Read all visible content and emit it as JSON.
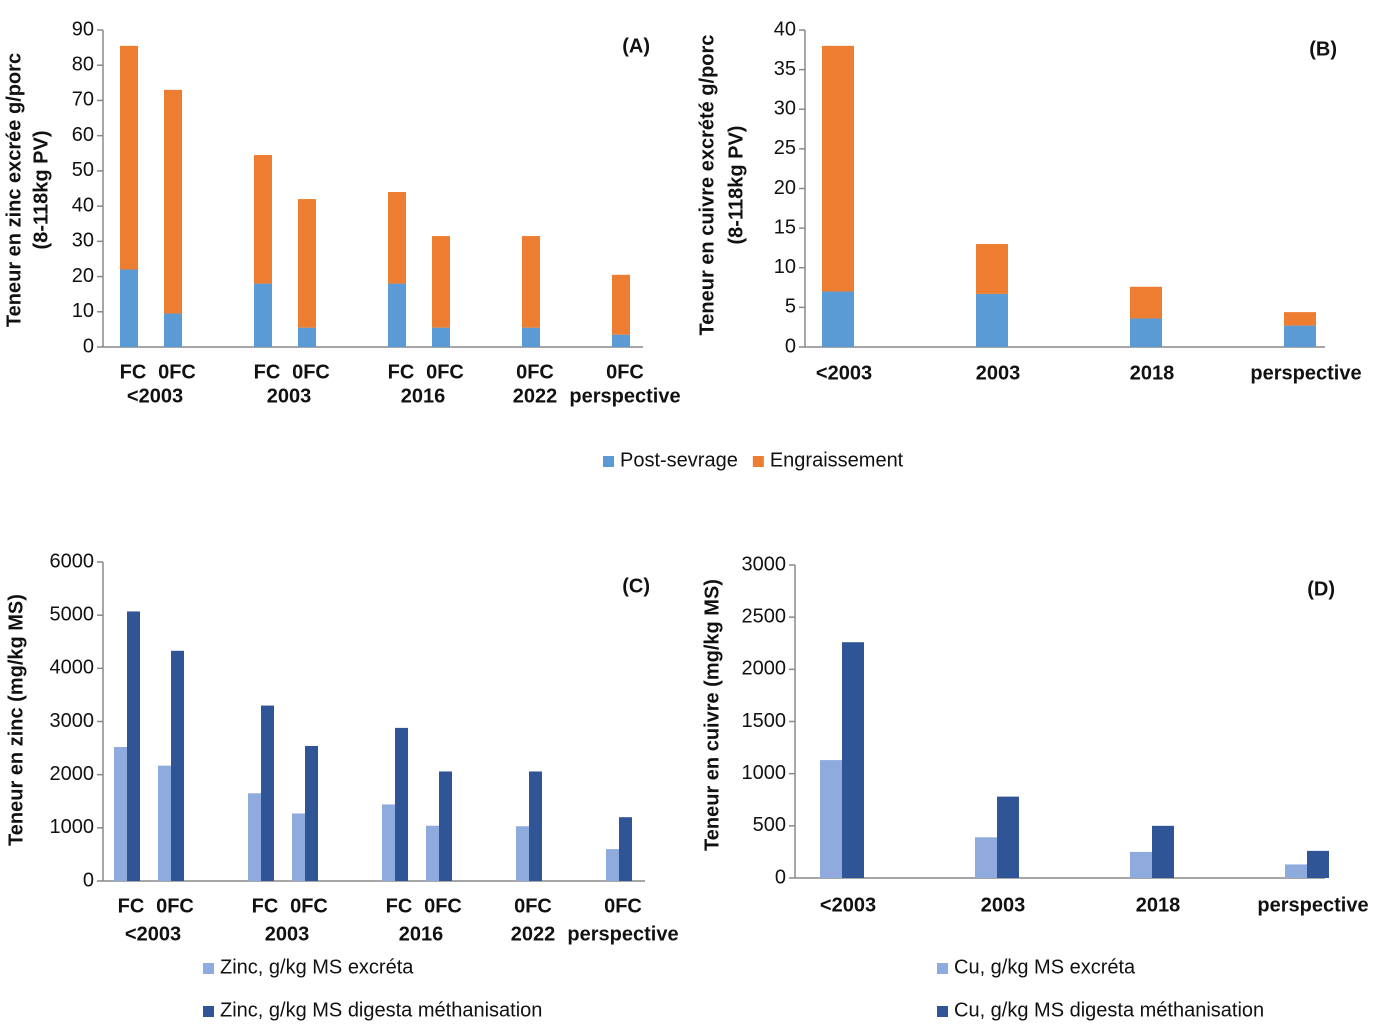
{
  "chart_data": [
    {
      "type": "bar",
      "stacked": true,
      "label": "(A)",
      "ylabel": [
        "Teneur en zinc excrée g/porc",
        "(8-118kg PV)"
      ],
      "groups": [
        {
          "label": "<2003",
          "categories": [
            "FC",
            "0FC"
          ]
        },
        {
          "label": "2003",
          "categories": [
            "FC",
            "0FC"
          ]
        },
        {
          "label": "2016",
          "categories": [
            "FC",
            "0FC"
          ]
        },
        {
          "label": "2022",
          "categories": [
            "0FC"
          ]
        },
        {
          "label": "perspective",
          "categories": [
            "0FC"
          ]
        }
      ],
      "series": [
        {
          "name": "Post-sevrage",
          "color": "#5b9bd5",
          "values": [
            22,
            9.5,
            18,
            5.5,
            18,
            5.5,
            5.5,
            3.5
          ]
        },
        {
          "name": "Engraissement",
          "color": "#ed7d31",
          "values": [
            63.5,
            63.5,
            36.5,
            36.5,
            26,
            26,
            26,
            17
          ]
        }
      ],
      "ylim": [
        0,
        90
      ],
      "yticks": [
        0,
        10,
        20,
        30,
        40,
        50,
        60,
        70,
        80,
        90
      ]
    },
    {
      "type": "bar",
      "stacked": true,
      "label": "(B)",
      "ylabel": [
        "Teneur en cuivre  excrété g/porc",
        "(8-118kg PV)"
      ],
      "categories": [
        "<2003",
        "2003",
        "2018",
        "perspective"
      ],
      "series": [
        {
          "color": "#5b9bd5",
          "values": [
            7,
            6.7,
            3.6,
            2.7
          ]
        },
        {
          "color": "#ed7d31",
          "values": [
            31,
            6.3,
            4,
            1.7
          ]
        }
      ],
      "ylim": [
        0,
        40
      ],
      "yticks": [
        0,
        5,
        10,
        15,
        20,
        25,
        30,
        35,
        40
      ]
    },
    {
      "type": "bar",
      "stacked": false,
      "label": "(C)",
      "ylabel": [
        "Teneur en zinc  (mg/kg MS)"
      ],
      "groups": [
        {
          "label": "<2003",
          "categories": [
            "FC",
            "0FC"
          ]
        },
        {
          "label": "2003",
          "categories": [
            "FC",
            "0FC"
          ]
        },
        {
          "label": "2016",
          "categories": [
            "FC",
            "0FC"
          ]
        },
        {
          "label": "2022",
          "categories": [
            "0FC"
          ]
        },
        {
          "label": "perspective",
          "categories": [
            "0FC"
          ]
        }
      ],
      "series": [
        {
          "name": "Zinc, g/kg MS excréta",
          "color": "#8faadc",
          "values": [
            2520,
            2170,
            1650,
            1270,
            1440,
            1040,
            1030,
            600
          ]
        },
        {
          "name": "Zinc, g/kg MS digesta méthanisation",
          "color": "#2f5597",
          "values": [
            5070,
            4330,
            3300,
            2540,
            2880,
            2060,
            2060,
            1200
          ]
        }
      ],
      "ylim": [
        0,
        6000
      ],
      "yticks": [
        0,
        1000,
        2000,
        3000,
        4000,
        5000,
        6000
      ]
    },
    {
      "type": "bar",
      "stacked": false,
      "label": "(D)",
      "ylabel": [
        "Teneur en cuivre  (mg/kg MS)"
      ],
      "categories": [
        "<2003",
        "2003",
        "2018",
        "perspective"
      ],
      "series": [
        {
          "name": "Cu, g/kg MS excréta",
          "color": "#8faadc",
          "values": [
            1130,
            390,
            250,
            130
          ]
        },
        {
          "name": "Cu, g/kg MS digesta méthanisation",
          "color": "#2f5597",
          "values": [
            2260,
            780,
            500,
            260
          ]
        }
      ],
      "ylim": [
        0,
        3000
      ],
      "yticks": [
        0,
        500,
        1000,
        1500,
        2000,
        2500,
        3000
      ]
    }
  ]
}
